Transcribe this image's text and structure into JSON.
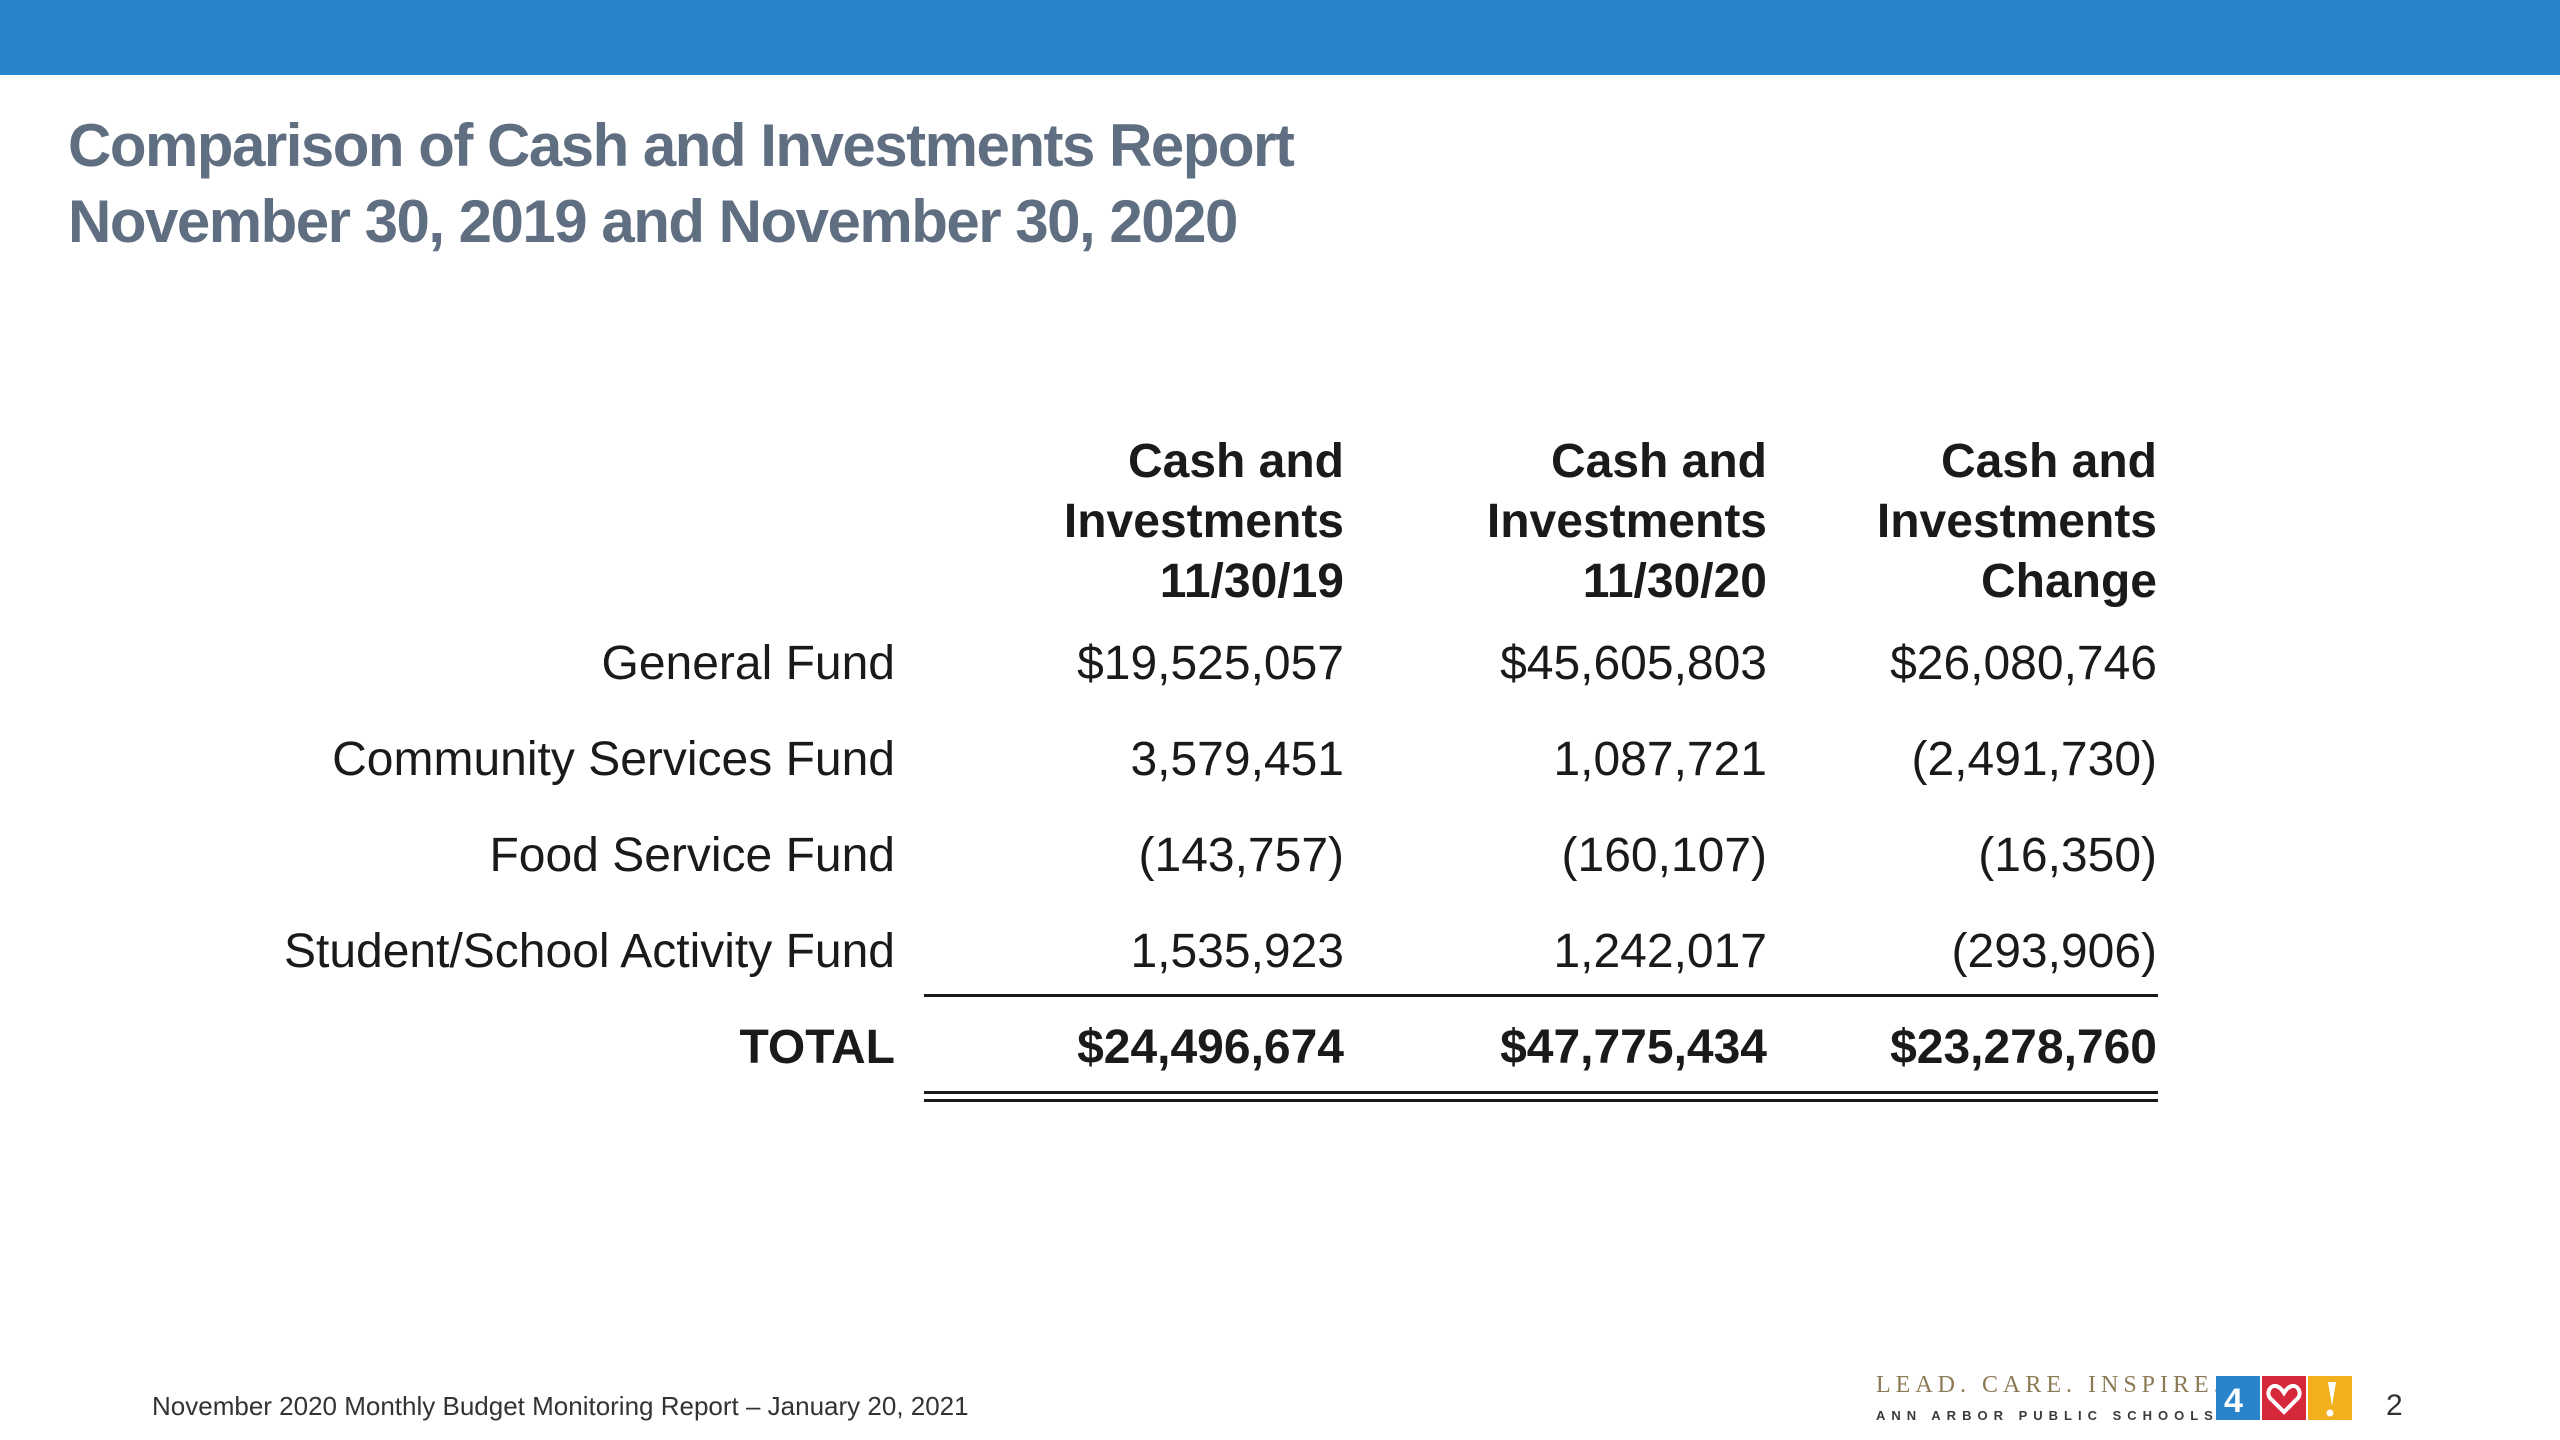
{
  "header": {
    "bar_color": "#2a84cc",
    "title_line1": "Comparison of Cash and Investments Report",
    "title_line2": "November 30, 2019 and November 30, 2020"
  },
  "table": {
    "columns": [
      {
        "line1": "Cash and",
        "line2": "Investments",
        "line3": "11/30/19"
      },
      {
        "line1": "Cash and",
        "line2": "Investments",
        "line3": "11/30/20"
      },
      {
        "line1": "Cash and",
        "line2": "Investments",
        "line3": "Change"
      }
    ],
    "rows": [
      {
        "label": "General Fund",
        "values": [
          "$19,525,057",
          "$45,605,803",
          "$26,080,746"
        ]
      },
      {
        "label": "Community Services Fund",
        "values": [
          "3,579,451",
          "1,087,721",
          "(2,491,730)"
        ]
      },
      {
        "label": "Food Service Fund",
        "values": [
          "(143,757)",
          "(160,107)",
          "(16,350)"
        ]
      },
      {
        "label": "Student/School Activity Fund",
        "values": [
          "1,535,923",
          "1,242,017",
          "(293,906)"
        ]
      }
    ],
    "total": {
      "label": "TOTAL",
      "values": [
        "$24,496,674",
        "$47,775,434",
        "$23,278,760"
      ]
    }
  },
  "footer": {
    "text": "November 2020 Monthly Budget Monitoring Report – January 20, 2021",
    "logo_tagline": "LEAD. CARE. INSPIRE.",
    "logo_sub": "ANN ARBOR PUBLIC SCHOOLS",
    "page_number": "2"
  }
}
